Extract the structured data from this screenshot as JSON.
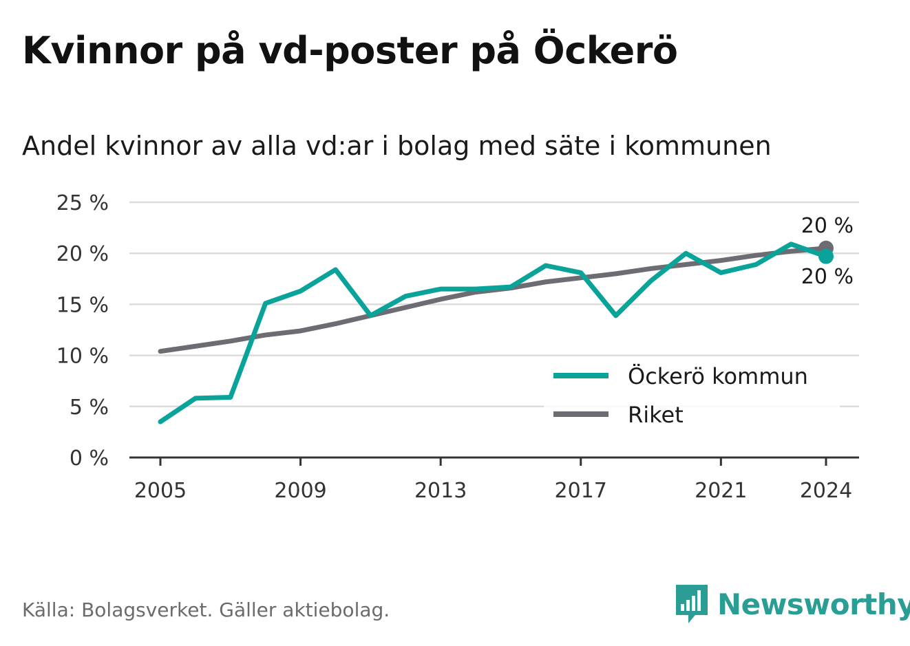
{
  "title": "Kvinnor på vd-poster på Öckerö",
  "subtitle": "Andel kvinnor av alla vd:ar i bolag med säte i kommunen",
  "source": "Källa: Bolagsverket. Gäller aktiebolag.",
  "brand": {
    "name": "Newsworthy",
    "color": "#2a9d94"
  },
  "chart_data": {
    "type": "line",
    "x": [
      2005,
      2006,
      2007,
      2008,
      2009,
      2010,
      2011,
      2012,
      2013,
      2014,
      2015,
      2016,
      2017,
      2018,
      2019,
      2020,
      2021,
      2022,
      2023,
      2024
    ],
    "series": [
      {
        "name": "Öckerö kommun",
        "color": "#0aa39a",
        "values": [
          3.5,
          5.8,
          5.9,
          15.1,
          16.3,
          18.4,
          13.9,
          15.8,
          16.5,
          16.5,
          16.7,
          18.8,
          18.1,
          13.9,
          17.3,
          20.0,
          18.1,
          18.9,
          20.9,
          19.7
        ],
        "end_label": "20 %"
      },
      {
        "name": "Riket",
        "color": "#6e6c73",
        "values": [
          10.4,
          10.9,
          11.4,
          12.0,
          12.4,
          13.1,
          13.9,
          14.7,
          15.5,
          16.2,
          16.6,
          17.2,
          17.6,
          18.0,
          18.5,
          18.9,
          19.3,
          19.8,
          20.2,
          20.5
        ],
        "end_label": "20 %"
      }
    ],
    "y_ticks": [
      "0 %",
      "5 %",
      "10 %",
      "15 %",
      "20 %",
      "25 %"
    ],
    "y_tick_values": [
      0,
      5,
      10,
      15,
      20,
      25
    ],
    "x_ticks": [
      "2005",
      "2009",
      "2013",
      "2017",
      "2021",
      "2024"
    ],
    "x_tick_values": [
      2005,
      2009,
      2013,
      2017,
      2021,
      2024
    ],
    "ylim": [
      0,
      25
    ],
    "xlim": [
      2005,
      2024
    ],
    "grid": true,
    "legend_position": "bottom-right"
  }
}
